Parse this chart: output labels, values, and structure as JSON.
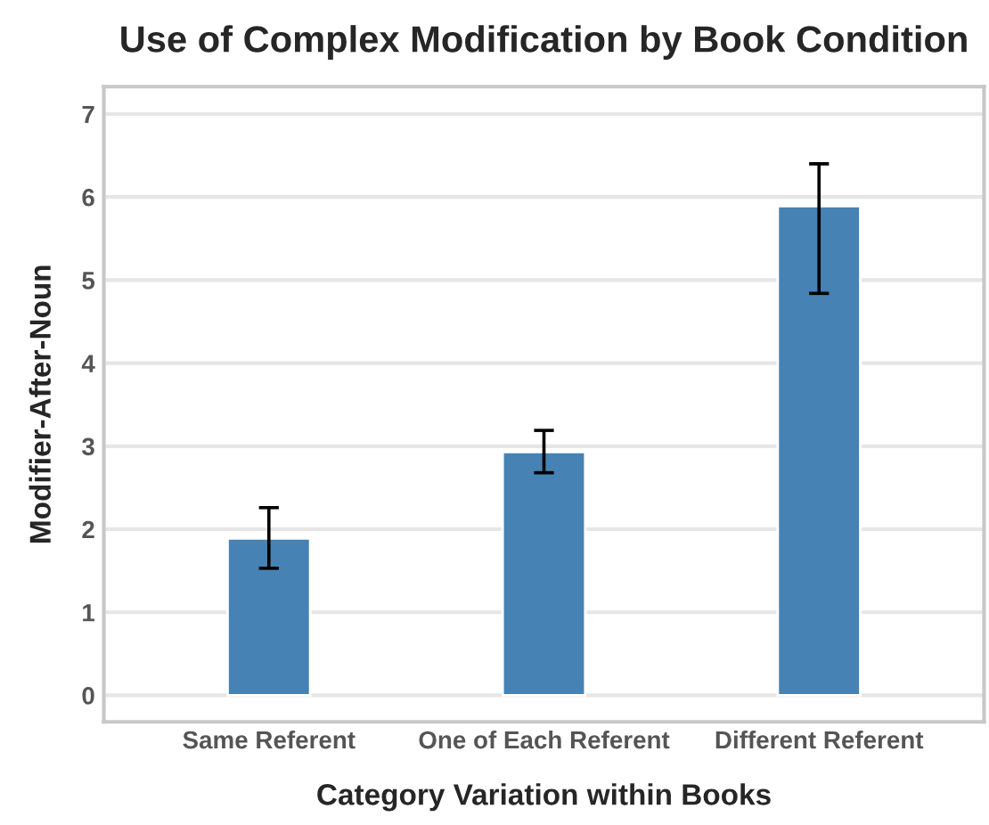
{
  "chart_data": {
    "type": "bar",
    "title": "Use of Complex Modification by Book Condition",
    "xlabel": "Category Variation within Books",
    "ylabel": "Modifier-After-Noun",
    "categories": [
      "Same Referent",
      "One of Each Referent",
      "Different Referent"
    ],
    "values": [
      1.89,
      2.93,
      5.89
    ],
    "errors": [
      [
        1.53,
        2.26
      ],
      [
        2.68,
        3.19
      ],
      [
        4.84,
        6.4
      ]
    ],
    "color": "#4682b4",
    "ylim": [
      -0.32,
      7.33
    ],
    "yticks": [
      0,
      1,
      2,
      3,
      4,
      5,
      6,
      7
    ],
    "grid": "y"
  }
}
